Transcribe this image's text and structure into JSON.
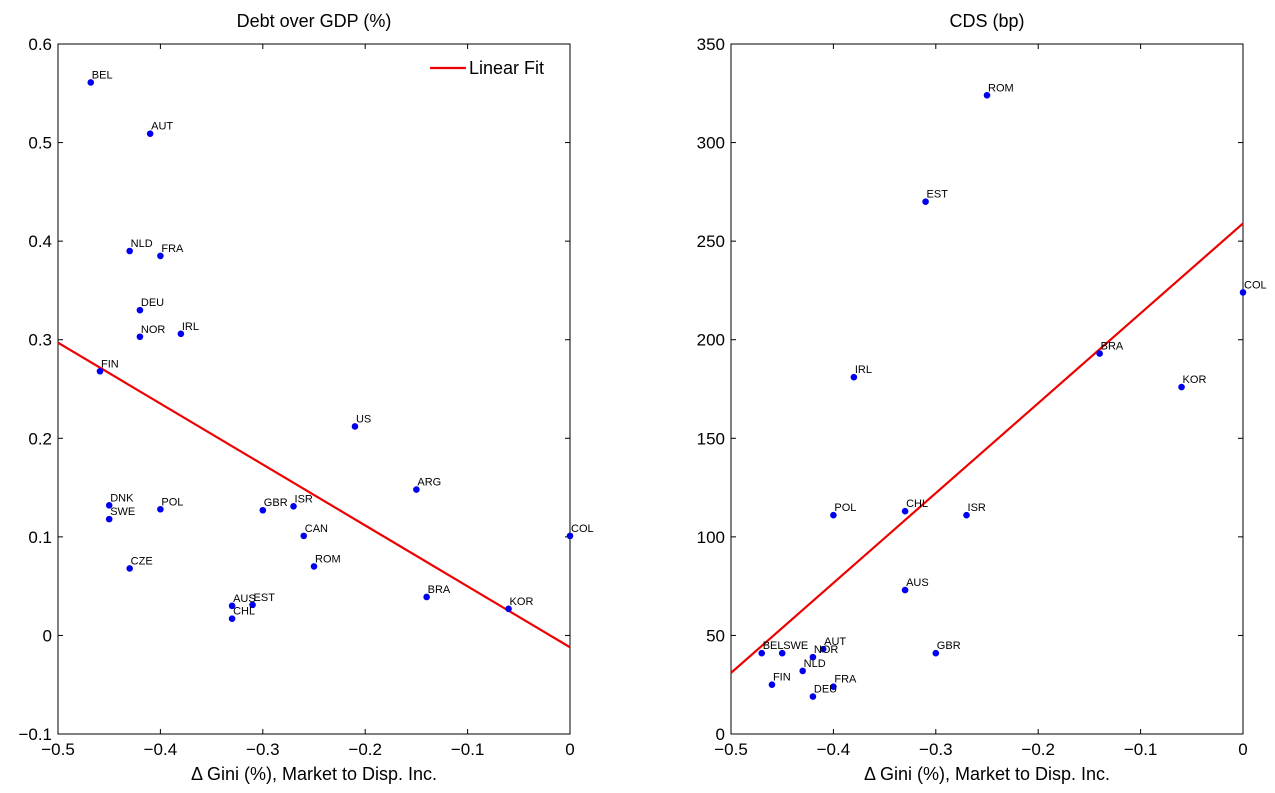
{
  "chart_data": [
    {
      "type": "scatter",
      "title": "Debt over GDP (%)",
      "xlabel": "Δ Gini (%), Market to Disp. Inc.",
      "ylabel": "",
      "xlim": [
        -0.5,
        0
      ],
      "ylim": [
        -0.1,
        0.6
      ],
      "xticks": [
        "-0.5",
        "-0.4",
        "-0.3",
        "-0.2",
        "-0.1",
        "0"
      ],
      "xtick_values": [
        -0.5,
        -0.4,
        -0.3,
        -0.2,
        -0.1,
        0
      ],
      "yticks": [
        "-0.1",
        "0",
        "0.1",
        "0.2",
        "0.3",
        "0.4",
        "0.5",
        "0.6"
      ],
      "ytick_values": [
        -0.1,
        0,
        0.1,
        0.2,
        0.3,
        0.4,
        0.5,
        0.6
      ],
      "grid": false,
      "legend": {
        "position": "top-right",
        "entries": [
          "Linear Fit"
        ]
      },
      "series": [
        {
          "points": [
            {
              "label": "BEL",
              "x": -0.468,
              "y": 0.561
            },
            {
              "label": "AUT",
              "x": -0.41,
              "y": 0.509
            },
            {
              "label": "NLD",
              "x": -0.43,
              "y": 0.39
            },
            {
              "label": "FRA",
              "x": -0.4,
              "y": 0.385
            },
            {
              "label": "DEU",
              "x": -0.42,
              "y": 0.33
            },
            {
              "label": "NOR",
              "x": -0.42,
              "y": 0.303
            },
            {
              "label": "IRL",
              "x": -0.38,
              "y": 0.306
            },
            {
              "label": "FIN",
              "x": -0.459,
              "y": 0.268
            },
            {
              "label": "US",
              "x": -0.21,
              "y": 0.212
            },
            {
              "label": "ARG",
              "x": -0.15,
              "y": 0.148
            },
            {
              "label": "DNK",
              "x": -0.45,
              "y": 0.132
            },
            {
              "label": "SWE",
              "x": -0.45,
              "y": 0.118
            },
            {
              "label": "POL",
              "x": -0.4,
              "y": 0.128
            },
            {
              "label": "GBR",
              "x": -0.3,
              "y": 0.127
            },
            {
              "label": "ISR",
              "x": -0.27,
              "y": 0.131
            },
            {
              "label": "CAN",
              "x": -0.26,
              "y": 0.101
            },
            {
              "label": "COL",
              "x": 0.0,
              "y": 0.101
            },
            {
              "label": "CZE",
              "x": -0.43,
              "y": 0.068
            },
            {
              "label": "ROM",
              "x": -0.25,
              "y": 0.07
            },
            {
              "label": "AUS",
              "x": -0.33,
              "y": 0.03
            },
            {
              "label": "EST",
              "x": -0.31,
              "y": 0.031
            },
            {
              "label": "CHL",
              "x": -0.33,
              "y": 0.017
            },
            {
              "label": "BRA",
              "x": -0.14,
              "y": 0.039
            },
            {
              "label": "KOR",
              "x": -0.06,
              "y": 0.027
            }
          ]
        }
      ],
      "fit_line": {
        "name": "Linear Fit",
        "x": [
          -0.5,
          0
        ],
        "y": [
          0.297,
          -0.012
        ]
      },
      "colors": {
        "points": "#0000ee",
        "fit": "#ee0000",
        "axis": "#000000"
      }
    },
    {
      "type": "scatter",
      "title": "CDS (bp)",
      "xlabel": "Δ Gini (%), Market to Disp. Inc.",
      "ylabel": "",
      "xlim": [
        -0.5,
        0
      ],
      "ylim": [
        0,
        350
      ],
      "xticks": [
        "-0.5",
        "-0.4",
        "-0.3",
        "-0.2",
        "-0.1",
        "0"
      ],
      "xtick_values": [
        -0.5,
        -0.4,
        -0.3,
        -0.2,
        -0.1,
        0
      ],
      "yticks": [
        "0",
        "50",
        "100",
        "150",
        "200",
        "250",
        "300",
        "350"
      ],
      "ytick_values": [
        0,
        50,
        100,
        150,
        200,
        250,
        300,
        350
      ],
      "grid": false,
      "series": [
        {
          "points": [
            {
              "label": "ROM",
              "x": -0.25,
              "y": 324
            },
            {
              "label": "EST",
              "x": -0.31,
              "y": 270
            },
            {
              "label": "COL",
              "x": 0.0,
              "y": 224
            },
            {
              "label": "BRA",
              "x": -0.14,
              "y": 193
            },
            {
              "label": "IRL",
              "x": -0.38,
              "y": 181
            },
            {
              "label": "KOR",
              "x": -0.06,
              "y": 176
            },
            {
              "label": "POL",
              "x": -0.4,
              "y": 111
            },
            {
              "label": "CHL",
              "x": -0.33,
              "y": 113
            },
            {
              "label": "ISR",
              "x": -0.27,
              "y": 111
            },
            {
              "label": "AUS",
              "x": -0.33,
              "y": 73
            },
            {
              "label": "AUT",
              "x": -0.41,
              "y": 43
            },
            {
              "label": "BEL",
              "x": -0.47,
              "y": 41
            },
            {
              "label": "SWE",
              "x": -0.45,
              "y": 41
            },
            {
              "label": "NOR",
              "x": -0.42,
              "y": 39
            },
            {
              "label": "GBR",
              "x": -0.3,
              "y": 41
            },
            {
              "label": "NLD",
              "x": -0.43,
              "y": 32
            },
            {
              "label": "FIN",
              "x": -0.46,
              "y": 25
            },
            {
              "label": "FRA",
              "x": -0.4,
              "y": 24
            },
            {
              "label": "DEU",
              "x": -0.42,
              "y": 19
            }
          ]
        }
      ],
      "fit_line": {
        "x": [
          -0.5,
          0
        ],
        "y": [
          31,
          259
        ]
      },
      "colors": {
        "points": "#0000ee",
        "fit": "#ee0000",
        "axis": "#000000"
      }
    }
  ]
}
